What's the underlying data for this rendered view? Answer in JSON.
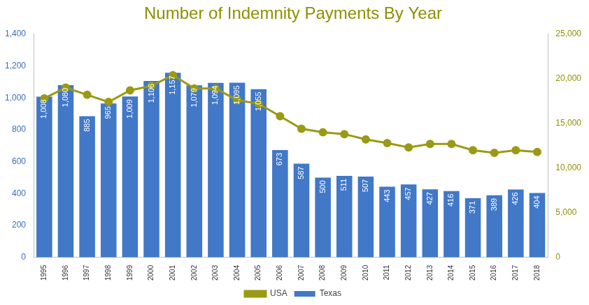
{
  "chart_data": {
    "type": "bar",
    "title": "Number of Indemnity Payments By Year",
    "categories": [
      "1995",
      "1996",
      "1997",
      "1998",
      "1999",
      "2000",
      "2001",
      "2002",
      "2003",
      "2004",
      "2005",
      "2006",
      "2007",
      "2008",
      "2009",
      "2010",
      "2011",
      "2012",
      "2013",
      "2014",
      "2015",
      "2016",
      "2017",
      "2018"
    ],
    "series": [
      {
        "name": "Texas",
        "type": "bar",
        "color": "#4178c8",
        "data_labels": true,
        "values": [
          1008,
          1080,
          885,
          965,
          1009,
          1106,
          1157,
          1079,
          1094,
          1095,
          1055,
          673,
          587,
          500,
          511,
          507,
          443,
          457,
          427,
          416,
          371,
          389,
          426,
          404
        ],
        "value_labels": [
          "1,008",
          "1,080",
          "885",
          "965",
          "1,009",
          "1,106",
          "1,157",
          "1,079",
          "1,094",
          "1,095",
          "1,055",
          "673",
          "587",
          "500",
          "511",
          "507",
          "443",
          "457",
          "427",
          "416",
          "371",
          "389",
          "426",
          "404"
        ]
      },
      {
        "name": "USA",
        "type": "line",
        "color": "#9a9a14",
        "marker": "circle",
        "axis": "y2",
        "values": [
          17800,
          19000,
          18200,
          17400,
          18700,
          19200,
          20400,
          18900,
          18900,
          17600,
          17200,
          15800,
          14400,
          14000,
          13800,
          13200,
          12800,
          12300,
          12700,
          12700,
          12000,
          11700,
          12000,
          11800
        ]
      }
    ],
    "ylim": [
      0,
      1400
    ],
    "yticks": [
      0,
      200,
      400,
      600,
      800,
      {
        "value": 1000,
        "label": "1,000"
      },
      {
        "value": 1200,
        "label": "1,200"
      },
      {
        "value": 1400,
        "label": "1,400"
      }
    ],
    "y2lim": [
      0,
      25000
    ],
    "y2ticks": [
      0,
      {
        "value": 5000,
        "label": "5,000"
      },
      {
        "value": 10000,
        "label": "10,000"
      },
      {
        "value": 15000,
        "label": "15,000"
      },
      {
        "value": 20000,
        "label": "20,000"
      },
      {
        "value": 25000,
        "label": "25,000"
      }
    ],
    "grid": false,
    "legend": "bottom"
  }
}
